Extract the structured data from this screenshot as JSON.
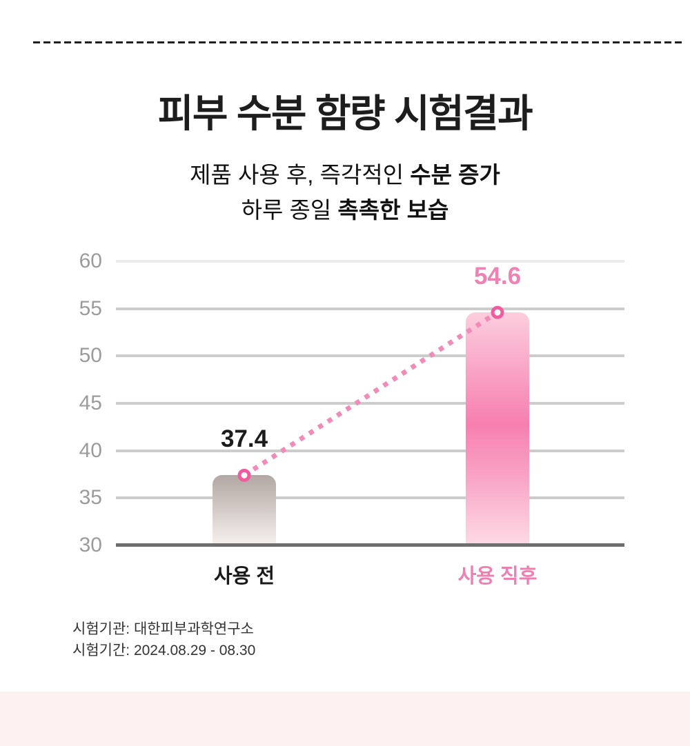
{
  "header": {
    "title": "피부 수분 함량 시험결과",
    "subtitle": {
      "line1_normal": "제품 사용 후, 즉각적인 ",
      "line1_bold": "수분 증가",
      "line2_normal": "하루 종일 ",
      "line2_bold": "촉촉한 보습"
    }
  },
  "chart_data": {
    "type": "bar",
    "categories": [
      "사용 전",
      "사용 직후"
    ],
    "values": [
      37.4,
      54.6
    ],
    "value_labels": [
      "37.4",
      "54.6"
    ],
    "title": "피부 수분 함량 시험결과",
    "xlabel": "",
    "ylabel": "",
    "ylim": [
      30,
      60
    ],
    "yticks": [
      30,
      35,
      40,
      45,
      50,
      55,
      60
    ],
    "grid": true,
    "legend": false,
    "annotations": {
      "connector": "dotted line with ring markers joining the two bar tops"
    },
    "bar_styles": [
      {
        "theme": "gray",
        "label_color": "#1c1c1c",
        "category_color": "#1a1a1a"
      },
      {
        "theme": "pink",
        "label_color": "#ee82b4",
        "category_color": "#ee7fb2"
      }
    ]
  },
  "footer": {
    "line1": "시험기관: 대한피부과학연구소",
    "line2": "시험기간: 2024.08.29 - 08.30"
  },
  "colors": {
    "divider": "#1f1f1f",
    "title_text": "#1d1d1d",
    "axis_label": "#9b9b9b",
    "gridline": "#cccccc",
    "gridline_top": "#ececec",
    "baseline": "#6e6e6e",
    "bar_before_top": "#b2a7a2",
    "bar_before_bottom": "#f5f0ee",
    "bar_after_light": "#fccedd",
    "bar_after_hot": "#f87fb0",
    "connector_pink": "#f18cb9",
    "marker_ring": "#ef5d9f",
    "footer_text": "#333333",
    "bottom_band": "#fdf2f1"
  }
}
